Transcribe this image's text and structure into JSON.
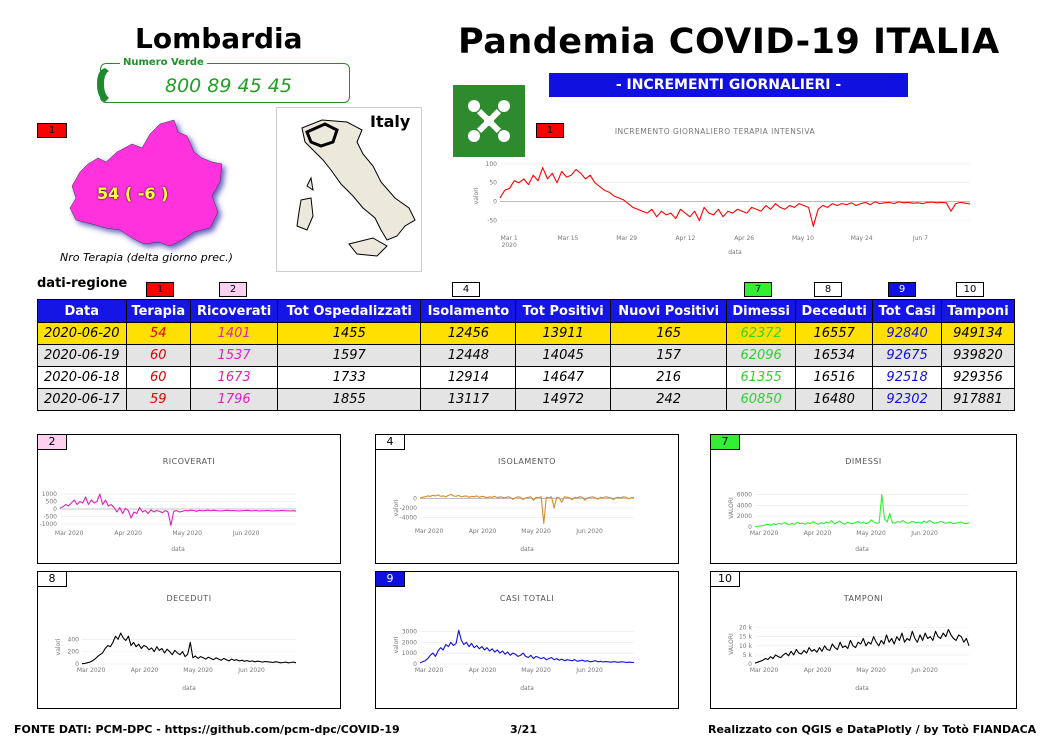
{
  "header": {
    "region": "Lombardia",
    "title": "Pandemia COVID-19 ITALIA",
    "subtitle": "- INCREMENTI GIORNALIERI -",
    "hotline_label": "Numero Verde",
    "hotline_number": "800 89 45 45",
    "italy_label": "Italy"
  },
  "map": {
    "tag": "1",
    "value": "54 ( -6 )",
    "caption": "Nro Terapia (delta giorno prec.)"
  },
  "colors": {
    "blue": "#1515e6",
    "yellow": "#ffe000",
    "terapia": "#ff0000",
    "ricoverati": "#e020c0",
    "isolamento": "#d88a30",
    "dimessi": "#33ee33",
    "deceduti": "#000000",
    "casi": "#1010e0",
    "tamponi": "#000000"
  },
  "table": {
    "label": "dati-regione",
    "tags": [
      "1",
      "2",
      "4",
      "7",
      "8",
      "9",
      "10"
    ],
    "headers": [
      "Data",
      "Terapia",
      "Ricoverati",
      "Tot Ospedalizzati",
      "Isolamento",
      "Tot Positivi",
      "Nuovi Positivi",
      "Dimessi",
      "Deceduti",
      "Tot Casi",
      "Tamponi"
    ],
    "rows": [
      [
        "2020-06-20",
        "54",
        "1401",
        "1455",
        "12456",
        "13911",
        "165",
        "62372",
        "16557",
        "92840",
        "949134"
      ],
      [
        "2020-06-19",
        "60",
        "1537",
        "1597",
        "12448",
        "14045",
        "157",
        "62096",
        "16534",
        "92675",
        "939820"
      ],
      [
        "2020-06-18",
        "60",
        "1673",
        "1733",
        "12914",
        "14647",
        "216",
        "61355",
        "16516",
        "92518",
        "929356"
      ],
      [
        "2020-06-17",
        "59",
        "1796",
        "1855",
        "13117",
        "14972",
        "242",
        "60850",
        "16480",
        "92302",
        "917881"
      ]
    ]
  },
  "footer": {
    "source": "FONTE DATI: PCM-DPC - https://github.com/pcm-dpc/COVID-19",
    "page": "3/21",
    "credits": "Realizzato con QGIS e DataPlotly / by Totò FIANDACA"
  },
  "chart_data": [
    {
      "id": "terapia",
      "type": "line",
      "tag": "1",
      "title": "INCREMENTO GIORNALIERO TERAPIA INTENSIVA",
      "xlabel": "data",
      "ylabel": "valori",
      "x_ticks": [
        "Mar 1\n2020",
        "Mar 15",
        "Mar 29",
        "Apr 12",
        "Apr 26",
        "May 10",
        "May 24",
        "Jun 7"
      ],
      "y_ticks": [
        "100",
        "50",
        "0",
        "-50"
      ],
      "ylim": [
        -80,
        110
      ],
      "series": [
        {
          "name": "Terapia",
          "values": [
            10,
            30,
            35,
            55,
            50,
            60,
            45,
            70,
            55,
            90,
            60,
            75,
            50,
            80,
            65,
            70,
            85,
            75,
            60,
            70,
            50,
            40,
            30,
            25,
            15,
            10,
            5,
            -5,
            -15,
            -20,
            -25,
            -30,
            -20,
            -40,
            -25,
            -35,
            -30,
            -45,
            -20,
            -30,
            -40,
            -25,
            -50,
            -15,
            -30,
            -35,
            -20,
            -40,
            -25,
            -30,
            -20,
            -25,
            -30,
            -15,
            -20,
            -25,
            -10,
            -20,
            -5,
            -15,
            -20,
            -10,
            -15,
            -5,
            -10,
            -15,
            -65,
            -20,
            -10,
            -15,
            -5,
            -10,
            -5,
            -8,
            -3,
            -10,
            -5,
            -2,
            -8,
            0,
            -5,
            -3,
            -2,
            -5,
            0,
            -3,
            -2,
            -4,
            -3,
            -5,
            -2,
            -1,
            -3,
            -2,
            -3,
            -25,
            -5,
            -2,
            -4,
            -6
          ]
        }
      ]
    },
    {
      "id": "ricoverati",
      "type": "line",
      "tag": "2",
      "title": "RICOVERATI",
      "xlabel": "data",
      "ylabel": "valori",
      "x_ticks": [
        "Mar 2020",
        "Apr 2020",
        "May 2020",
        "Jun 2020"
      ],
      "y_ticks": [
        "1000",
        "500",
        "0",
        "-500",
        "-1000"
      ],
      "ylim": [
        -1200,
        1200
      ],
      "series": [
        {
          "name": "Ricoverati",
          "values": [
            50,
            150,
            300,
            200,
            400,
            600,
            300,
            500,
            400,
            800,
            300,
            600,
            400,
            500,
            1000,
            300,
            600,
            200,
            300,
            100,
            -200,
            100,
            -300,
            50,
            -100,
            -600,
            -200,
            -300,
            100,
            -200,
            -100,
            -300,
            -50,
            -200,
            -100,
            -150,
            -250,
            -100,
            -200,
            -1100,
            -150,
            -100,
            -200,
            -150,
            -100,
            -120,
            -80,
            -100,
            -150,
            -90,
            -120,
            -100,
            -80,
            -110,
            -90,
            -100,
            -130,
            -120,
            -100,
            -90,
            -110,
            -100,
            -120,
            -130,
            -110,
            -100,
            -90,
            -120,
            -110,
            -100,
            -130,
            -120,
            -110,
            -100,
            -120,
            -130,
            -110,
            -120,
            -100,
            -110,
            -120,
            -130,
            -110,
            -140
          ]
        }
      ]
    },
    {
      "id": "isolamento",
      "type": "line",
      "tag": "4",
      "title": "ISOLAMENTO",
      "xlabel": "data",
      "ylabel": "valori",
      "x_ticks": [
        "Mar 2020",
        "Apr 2020",
        "May 2020",
        "Jun 2020"
      ],
      "y_ticks": [
        "0",
        "-2000",
        "-4000"
      ],
      "ylim": [
        -5500,
        1500
      ],
      "series": [
        {
          "name": "Isolamento",
          "values": [
            100,
            200,
            300,
            500,
            400,
            600,
            500,
            700,
            400,
            500,
            300,
            600,
            800,
            500,
            400,
            600,
            300,
            400,
            500,
            200,
            400,
            300,
            500,
            200,
            400,
            300,
            100,
            300,
            200,
            400,
            100,
            300,
            200,
            100,
            300,
            200,
            -200,
            100,
            300,
            200,
            -300,
            100,
            200,
            300,
            -400,
            200,
            100,
            300,
            -5200,
            200,
            100,
            300,
            -2000,
            200,
            100,
            -800,
            300,
            200,
            100,
            -300,
            200,
            100,
            300,
            200,
            -400,
            100,
            200,
            300,
            100,
            -200,
            200,
            100,
            300,
            200,
            100,
            -300,
            100,
            200,
            100,
            300,
            200,
            -100,
            100,
            200
          ]
        }
      ]
    },
    {
      "id": "dimessi",
      "type": "line",
      "tag": "7",
      "title": "DIMESSI",
      "xlabel": "data",
      "ylabel": "VALORI",
      "x_ticks": [
        "Mar 2020",
        "Apr 2020",
        "May 2020",
        "Jun 2020"
      ],
      "y_ticks": [
        "6000",
        "4000",
        "2000",
        "0"
      ],
      "ylim": [
        0,
        7000
      ],
      "series": [
        {
          "name": "Dimessi",
          "values": [
            50,
            100,
            200,
            300,
            400,
            500,
            300,
            600,
            400,
            700,
            500,
            800,
            600,
            400,
            700,
            500,
            900,
            600,
            700,
            500,
            800,
            600,
            1000,
            700,
            500,
            800,
            600,
            900,
            700,
            1200,
            600,
            800,
            1100,
            700,
            500,
            900,
            700,
            600,
            800,
            1000,
            700,
            900,
            600,
            800,
            1300,
            900,
            700,
            800,
            6000,
            1500,
            900,
            2500,
            800,
            700,
            1000,
            900,
            1200,
            800,
            700,
            900,
            1000,
            800,
            900,
            700,
            1100,
            800,
            1200,
            900,
            700,
            800,
            1000,
            900,
            700,
            800,
            900,
            600,
            700,
            800,
            900,
            700,
            600,
            800
          ]
        }
      ]
    },
    {
      "id": "deceduti",
      "type": "line",
      "tag": "8",
      "title": "DECEDUTI",
      "xlabel": "data",
      "ylabel": "valori",
      "x_ticks": [
        "Mar 2020",
        "Apr 2020",
        "May 2020",
        "Jun 2020"
      ],
      "y_ticks": [
        "400",
        "200",
        "0"
      ],
      "ylim": [
        0,
        550
      ],
      "series": [
        {
          "name": "Deceduti",
          "values": [
            5,
            10,
            20,
            30,
            50,
            80,
            120,
            150,
            180,
            250,
            300,
            280,
            350,
            450,
            400,
            500,
            420,
            380,
            450,
            300,
            350,
            280,
            320,
            250,
            300,
            280,
            230,
            260,
            200,
            280,
            220,
            250,
            180,
            240,
            200,
            150,
            220,
            180,
            150,
            200,
            120,
            160,
            350,
            100,
            130,
            90,
            120,
            100,
            80,
            110,
            90,
            70,
            100,
            80,
            60,
            90,
            70,
            50,
            80,
            60,
            70,
            50,
            60,
            45,
            55,
            40,
            50,
            35,
            45,
            40,
            30,
            40,
            35,
            30,
            25,
            35,
            30,
            20,
            25,
            30,
            20,
            25,
            30,
            20
          ]
        }
      ]
    },
    {
      "id": "casi",
      "type": "line",
      "tag": "9",
      "title": "CASI TOTALI",
      "xlabel": "data",
      "ylabel": "valori",
      "x_ticks": [
        "Mar 2020",
        "Apr 2020",
        "May 2020",
        "Jun 2020"
      ],
      "y_ticks": [
        "3000",
        "2000",
        "1000",
        "0"
      ],
      "ylim": [
        0,
        3500
      ],
      "series": [
        {
          "name": "Casi",
          "values": [
            100,
            200,
            300,
            500,
            800,
            1000,
            700,
            1200,
            1500,
            1300,
            1800,
            1600,
            2000,
            1700,
            1900,
            3100,
            2200,
            1800,
            2000,
            1600,
            1900,
            1500,
            1700,
            1400,
            1600,
            1300,
            1500,
            1200,
            1400,
            1100,
            1300,
            1000,
            1200,
            900,
            1100,
            800,
            1000,
            900,
            700,
            800,
            1000,
            700,
            600,
            800,
            500,
            700,
            600,
            500,
            600,
            400,
            500,
            600,
            400,
            500,
            350,
            450,
            300,
            400,
            350,
            300,
            400,
            250,
            300,
            350,
            250,
            300,
            200,
            250,
            300,
            200,
            250,
            180,
            220,
            200,
            170,
            210,
            190,
            160,
            200,
            180,
            150,
            170,
            160,
            140
          ]
        }
      ]
    },
    {
      "id": "tamponi",
      "type": "line",
      "tag": "10",
      "title": "TAMPONI",
      "xlabel": "data",
      "ylabel": "VALORI",
      "x_ticks": [
        "Mar 2020",
        "Apr 2020",
        "May 2020",
        "Jun 2020"
      ],
      "y_ticks": [
        "20 k",
        "15 k",
        "10 k",
        "5 k",
        "0"
      ],
      "ylim": [
        0,
        22000
      ],
      "series": [
        {
          "name": "Tamponi",
          "values": [
            500,
            1000,
            1500,
            2000,
            3000,
            2500,
            4000,
            3000,
            5000,
            4000,
            3500,
            5000,
            6000,
            4500,
            7000,
            5000,
            8000,
            6000,
            5500,
            7500,
            6000,
            9000,
            7000,
            8000,
            6500,
            9000,
            7000,
            10000,
            8000,
            7500,
            11000,
            9000,
            8000,
            12000,
            9000,
            10000,
            8500,
            13000,
            10000,
            9000,
            12000,
            11000,
            14000,
            10000,
            12000,
            11000,
            15000,
            12000,
            10000,
            13000,
            11000,
            16000,
            12000,
            14000,
            11000,
            15000,
            13000,
            17000,
            12000,
            14000,
            13000,
            18000,
            14000,
            12000,
            16000,
            13000,
            17000,
            14000,
            15000,
            13000,
            18000,
            15000,
            14000,
            17000,
            15000,
            19000,
            16000,
            14000,
            13000,
            16000,
            15000,
            12000,
            14000,
            10000
          ]
        }
      ]
    }
  ]
}
